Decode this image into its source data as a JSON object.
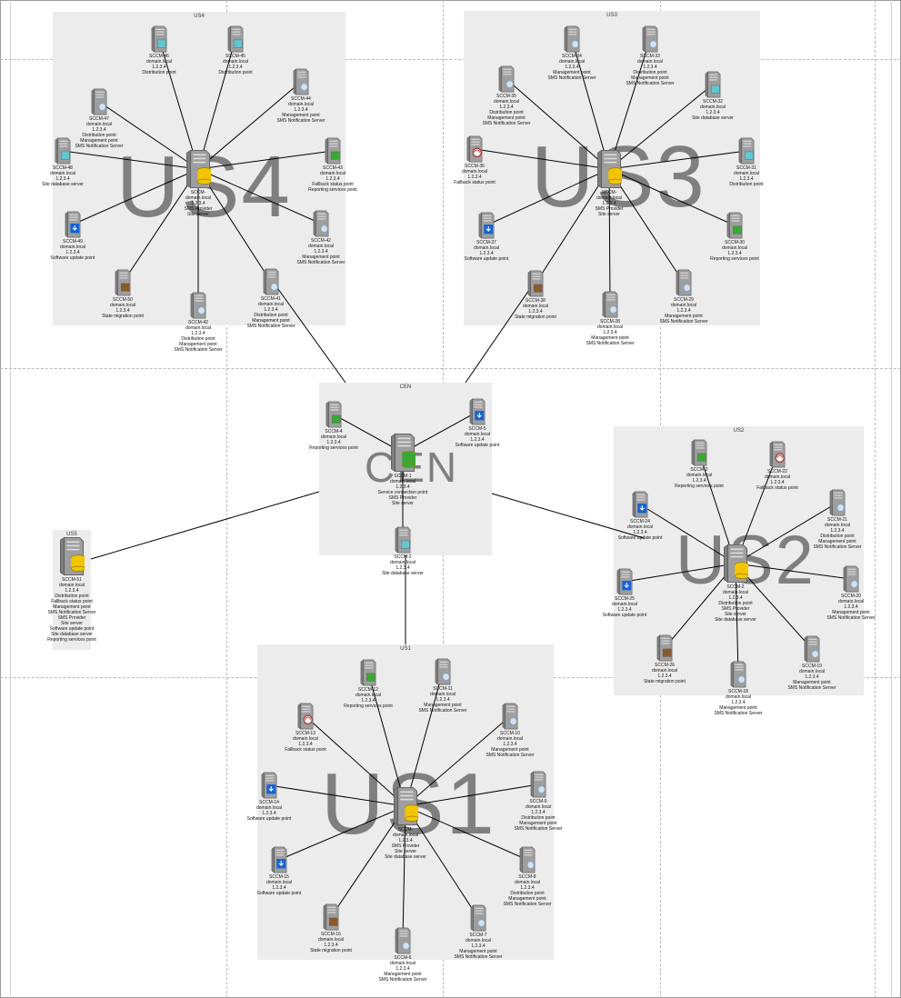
{
  "sites": [
    {
      "key": "us4",
      "title": "US4",
      "bigLabel": "US4"
    },
    {
      "key": "us3",
      "title": "US3",
      "bigLabel": "US3"
    },
    {
      "key": "cen",
      "title": "CEN",
      "bigLabel": "CEN"
    },
    {
      "key": "us2",
      "title": "US2",
      "bigLabel": "US2"
    },
    {
      "key": "us5",
      "title": "US5",
      "bigLabel": ""
    },
    {
      "key": "us1",
      "title": "US1",
      "bigLabel": "US1"
    }
  ],
  "nodes": [
    {
      "id": "sccm-4-hub",
      "site": "us4",
      "hub": true,
      "icon": "db-server-icon",
      "lines": [
        "SCCM-",
        "domain.local",
        "1.2.3.4",
        "SMS Provider",
        "Site server"
      ]
    },
    {
      "id": "sccm-46",
      "site": "us4",
      "icon": "distribution-server-icon",
      "lines": [
        "SCCM-46",
        "domain.local",
        "1.2.3.4",
        "Distribution point"
      ]
    },
    {
      "id": "sccm-45",
      "site": "us4",
      "icon": "distribution-server-icon",
      "lines": [
        "SCCM-45",
        "domain.local",
        "1.2.3.4",
        "Distribution point"
      ]
    },
    {
      "id": "sccm-47",
      "site": "us4",
      "icon": "management-server-icon",
      "lines": [
        "SCCM-47",
        "domain.local",
        "1.2.3.4",
        "Distribution point",
        "Management point",
        "SMS Notification Server"
      ]
    },
    {
      "id": "sccm-44",
      "site": "us4",
      "icon": "management-server-icon",
      "lines": [
        "SCCM-44",
        "domain.local",
        "1.2.3.4",
        "Management point",
        "SMS Notification Server"
      ]
    },
    {
      "id": "sccm-48",
      "site": "us4",
      "icon": "database-server-icon",
      "lines": [
        "SCCM-48",
        "domain.local",
        "1.2.3.4",
        "Site database server"
      ]
    },
    {
      "id": "sccm-43",
      "site": "us4",
      "icon": "reporting-server-icon",
      "lines": [
        "SCCM-43",
        "domain.local",
        "1.2.3.4",
        "Fallback status point",
        "Reporting services point"
      ]
    },
    {
      "id": "sccm-49",
      "site": "us4",
      "icon": "update-server-icon",
      "lines": [
        "SCCM-49",
        "domain.local",
        "1.2.3.4",
        "Software update point"
      ]
    },
    {
      "id": "sccm-42b",
      "site": "us4",
      "icon": "management-server-icon",
      "lines": [
        "SCCM-42",
        "domain.local",
        "1.2.3.4",
        "Management point",
        "SMS Notification Server"
      ]
    },
    {
      "id": "sccm-50",
      "site": "us4",
      "icon": "migration-server-icon",
      "lines": [
        "SCCM-50",
        "domain.local",
        "1.2.3.4",
        "State migration point"
      ]
    },
    {
      "id": "sccm-42",
      "site": "us4",
      "icon": "management-server-icon",
      "lines": [
        "SCCM-42",
        "domain.local",
        "1.2.3.4",
        "Distribution point",
        "Management point",
        "SMS Notification Server"
      ]
    },
    {
      "id": "sccm-41",
      "site": "us4",
      "icon": "management-server-icon",
      "lines": [
        "SCCM-41",
        "domain.local",
        "1.2.3.4",
        "Distribution point",
        "Management point",
        "SMS Notification Server"
      ]
    },
    {
      "id": "sccm-3-hub",
      "site": "us3",
      "hub": true,
      "icon": "db-server-icon",
      "lines": [
        "SCCM-",
        "domain.local",
        "1.2.3.4",
        "SMS Provider",
        "Site server"
      ]
    },
    {
      "id": "sccm-34",
      "site": "us3",
      "icon": "management-server-icon",
      "lines": [
        "SCCM-34",
        "domain.local",
        "1.2.3.4",
        "Management point",
        "SMS Notification Server"
      ]
    },
    {
      "id": "sccm-33",
      "site": "us3",
      "icon": "management-server-icon",
      "lines": [
        "SCCM-33",
        "domain.local",
        "1.2.3.4",
        "Distribution point",
        "Management point",
        "SMS Notification Server"
      ]
    },
    {
      "id": "sccm-35",
      "site": "us3",
      "icon": "management-server-icon",
      "lines": [
        "SCCM-35",
        "domain.local",
        "1.2.3.4",
        "Distribution point",
        "Management point",
        "SMS Notification Server"
      ]
    },
    {
      "id": "sccm-32",
      "site": "us3",
      "icon": "database-server-icon",
      "lines": [
        "SCCM-32",
        "domain.local",
        "1.2.3.4",
        "Site database server"
      ]
    },
    {
      "id": "sccm-36",
      "site": "us3",
      "icon": "fallback-server-icon",
      "lines": [
        "SCCM-36",
        "domain.local",
        "1.2.3.4",
        "Fallback status point"
      ]
    },
    {
      "id": "sccm-31",
      "site": "us3",
      "icon": "distribution-server-icon",
      "lines": [
        "SCCM-31",
        "domain.local",
        "1.2.3.4",
        "Distribution point"
      ]
    },
    {
      "id": "sccm-37",
      "site": "us3",
      "icon": "update-server-icon",
      "lines": [
        "SCCM-37",
        "domain.local",
        "1.2.3.4",
        "Software update point"
      ]
    },
    {
      "id": "sccm-30",
      "site": "us3",
      "icon": "reporting-server-icon",
      "lines": [
        "SCCM-30",
        "domain.local",
        "1.2.3.4",
        "Reporting services point"
      ]
    },
    {
      "id": "sccm-38",
      "site": "us3",
      "icon": "migration-server-icon",
      "lines": [
        "SCCM-38",
        "domain.local",
        "1.2.3.4",
        "State migration point"
      ]
    },
    {
      "id": "sccm-28",
      "site": "us3",
      "icon": "management-server-icon",
      "lines": [
        "SCCM-28",
        "domain.local",
        "1.2.3.4",
        "Management point",
        "SMS Notification Server"
      ]
    },
    {
      "id": "sccm-29",
      "site": "us3",
      "icon": "management-server-icon",
      "lines": [
        "SCCM-29",
        "domain.local",
        "1.2.3.4",
        "Management point",
        "SMS Notification Server"
      ]
    },
    {
      "id": "sccm-1",
      "site": "cen",
      "hub": true,
      "icon": "cas-server-icon",
      "lines": [
        "SCCM-1",
        "domain.local",
        "1.2.3.4",
        "Service connection point",
        "SMS Provider",
        "Site server"
      ]
    },
    {
      "id": "sccm-4",
      "site": "cen",
      "icon": "reporting-server-icon",
      "lines": [
        "SCCM-4",
        "domain.local",
        "1.2.3.4",
        "Reporting services point"
      ]
    },
    {
      "id": "sccm-5",
      "site": "cen",
      "icon": "update-server-icon",
      "lines": [
        "SCCM-5",
        "domain.local",
        "1.2.3.4",
        "Software update point"
      ]
    },
    {
      "id": "sccm-2",
      "site": "cen",
      "icon": "database-server-icon",
      "lines": [
        "SCCM-2",
        "domain.local",
        "1.2.3.4",
        "Site database server"
      ]
    },
    {
      "id": "sccm-2-hub",
      "site": "us2",
      "hub": true,
      "icon": "db-server-icon",
      "lines": [
        "SCCM-2",
        "domain.local",
        "1.2.3.4",
        "Distribution point",
        "SMS Provider",
        "Site server",
        "Site database server"
      ]
    },
    {
      "id": "sccm-23",
      "site": "us2",
      "icon": "reporting-server-icon",
      "lines": [
        "SCCM-2",
        "domain.local",
        "1.2.3.4",
        "Reporting services point"
      ]
    },
    {
      "id": "sccm-22",
      "site": "us2",
      "icon": "fallback-server-icon",
      "lines": [
        "SCCM-22",
        "domain.local",
        "1.2.3.4",
        "Fallback status point"
      ]
    },
    {
      "id": "sccm-24",
      "site": "us2",
      "icon": "update-server-icon",
      "lines": [
        "SCCM-24",
        "domain.local",
        "1.2.3.4",
        "Software update point"
      ]
    },
    {
      "id": "sccm-21",
      "site": "us2",
      "icon": "management-server-icon",
      "lines": [
        "SCCM-21",
        "domain.local",
        "1.2.3.4",
        "Distribution point",
        "Management point",
        "SMS Notification Server"
      ]
    },
    {
      "id": "sccm-25",
      "site": "us2",
      "icon": "update-server-icon",
      "lines": [
        "SCCM-25",
        "domain.local",
        "1.2.3.4",
        "Software update point"
      ]
    },
    {
      "id": "sccm-20",
      "site": "us2",
      "icon": "management-server-icon",
      "lines": [
        "SCCM-20",
        "domain.local",
        "1.2.3.4",
        "Management point",
        "SMS Notification Server"
      ]
    },
    {
      "id": "sccm-26",
      "site": "us2",
      "icon": "migration-server-icon",
      "lines": [
        "SCCM-26",
        "domain.local",
        "1.2.3.4",
        "State migration point"
      ]
    },
    {
      "id": "sccm-19",
      "site": "us2",
      "icon": "management-server-icon",
      "lines": [
        "SCCM-19",
        "domain.local",
        "1.2.3.4",
        "Management point",
        "SMS Notification Server"
      ]
    },
    {
      "id": "sccm-18",
      "site": "us2",
      "icon": "management-server-icon",
      "lines": [
        "SCCM-18",
        "domain.local",
        "1.2.3.4",
        "Management point",
        "SMS Notification Server"
      ]
    },
    {
      "id": "sccm-51",
      "site": "us5",
      "hub": true,
      "icon": "db-server-icon",
      "lines": [
        "SCCM-51",
        "domain.local",
        "1.2.3.4",
        "Distribution point",
        "Fallback status point",
        "Management point",
        "SMS Notification Server",
        "SMS Provider",
        "Site server",
        "Software update point",
        "Site database server",
        "Reporting services point"
      ]
    },
    {
      "id": "sccm-1-hub",
      "site": "us1",
      "hub": true,
      "icon": "db-server-icon",
      "lines": [
        "SCCM-",
        "domain.local",
        "1.2.3.4",
        "SMS Provider",
        "Site server",
        "Site database server"
      ]
    },
    {
      "id": "sccm-12",
      "site": "us1",
      "icon": "reporting-server-icon",
      "lines": [
        "SCCM-12",
        "domain.local",
        "1.2.3.4",
        "Reporting services point"
      ]
    },
    {
      "id": "sccm-11",
      "site": "us1",
      "icon": "management-server-icon",
      "lines": [
        "SCCM-11",
        "domain.local",
        "1.2.3.4",
        "Management point",
        "SMS Notification Server"
      ]
    },
    {
      "id": "sccm-13",
      "site": "us1",
      "icon": "fallback-server-icon",
      "lines": [
        "SCCM-13",
        "domain.local",
        "1.2.3.4",
        "Fallback status point"
      ]
    },
    {
      "id": "sccm-10",
      "site": "us1",
      "icon": "management-server-icon",
      "lines": [
        "SCCM-10",
        "domain.local",
        "1.2.3.4",
        "Management point",
        "SMS Notification Server"
      ]
    },
    {
      "id": "sccm-14",
      "site": "us1",
      "icon": "update-server-icon",
      "lines": [
        "SCCM-14",
        "domain.local",
        "1.2.3.4",
        "Software update point"
      ]
    },
    {
      "id": "sccm-9",
      "site": "us1",
      "icon": "management-server-icon",
      "lines": [
        "SCCM-9",
        "domain.local",
        "1.2.3.4",
        "Distribution point",
        "Management point",
        "SMS Notification Server"
      ]
    },
    {
      "id": "sccm-15",
      "site": "us1",
      "icon": "update-server-icon",
      "lines": [
        "SCCM-15",
        "domain.local",
        "1.2.3.4",
        "Software update point"
      ]
    },
    {
      "id": "sccm-8",
      "site": "us1",
      "icon": "management-server-icon",
      "lines": [
        "SCCM-8",
        "domain.local",
        "1.2.3.4",
        "Distribution point",
        "Management point",
        "SMS Notification Server"
      ]
    },
    {
      "id": "sccm-16",
      "site": "us1",
      "icon": "migration-server-icon",
      "lines": [
        "SCCM-16",
        "domain.local",
        "1.2.3.4",
        "State migration point"
      ]
    },
    {
      "id": "sccm-6",
      "site": "us1",
      "icon": "management-server-icon",
      "lines": [
        "SCCM-6",
        "domain.local",
        "1.2.3.4",
        "Management point",
        "SMS Notification Server"
      ]
    },
    {
      "id": "sccm-7",
      "site": "us1",
      "icon": "management-server-icon",
      "lines": [
        "SCCM-7",
        "domain.local",
        "1.2.3.4",
        "Management point",
        "SMS Notification Server"
      ]
    }
  ],
  "colors": {
    "siteFill": "#ececec",
    "bigLabel": "#7f7f7f",
    "connector": "#000000",
    "serverBody": "#9e9e9e",
    "dbBadge": "#f2c500",
    "updateBadge": "#1463d6",
    "reportBadge": "#39a935",
    "distBadge": "#62c6d3",
    "fallbackBadge": "#b01f1f",
    "migrationBadge": "#8a5a2a",
    "mgmtBadge": "#cfe3f6"
  }
}
